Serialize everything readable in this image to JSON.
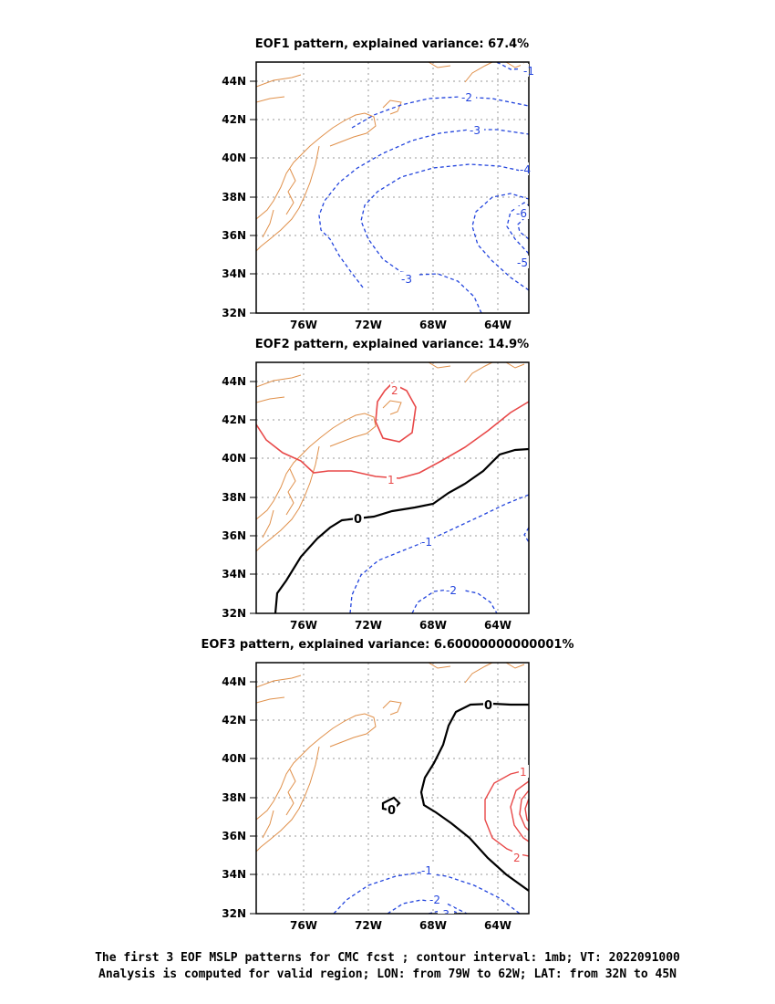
{
  "chart_data": [
    {
      "type": "contour",
      "title": "EOF1 pattern, explained variance: 67.4%",
      "x_ticks": [
        "76W",
        "72W",
        "68W",
        "64W"
      ],
      "y_ticks": [
        "44N",
        "42N",
        "40N",
        "38N",
        "36N",
        "34N",
        "32N"
      ],
      "contour_labels": [
        "-1",
        "-2",
        "-3",
        "-4",
        "-5",
        "-6",
        "-3"
      ],
      "lon_range": [
        -79,
        -62
      ],
      "lat_range": [
        32,
        45
      ],
      "grid": true
    },
    {
      "type": "contour",
      "title": "EOF2 pattern, explained variance: 14.9%",
      "x_ticks": [
        "76W",
        "72W",
        "68W",
        "64W"
      ],
      "y_ticks": [
        "44N",
        "42N",
        "40N",
        "38N",
        "36N",
        "34N",
        "32N"
      ],
      "contour_labels": [
        "2",
        "1",
        "0",
        "-1",
        "-2"
      ],
      "lon_range": [
        -79,
        -62
      ],
      "lat_range": [
        32,
        45
      ],
      "grid": true
    },
    {
      "type": "contour",
      "title": "EOF3 pattern, explained variance: 6.60000000000001%",
      "x_ticks": [
        "76W",
        "72W",
        "68W",
        "64W"
      ],
      "y_ticks": [
        "44N",
        "42N",
        "40N",
        "38N",
        "36N",
        "34N",
        "32N"
      ],
      "contour_labels": [
        "0",
        "0",
        "1",
        "2",
        "-1",
        "-2",
        "-3"
      ],
      "lon_range": [
        -79,
        -62
      ],
      "lat_range": [
        32,
        45
      ],
      "grid": true
    }
  ],
  "colors": {
    "positive": "#e84848",
    "negative": "#2244dd",
    "zero": "#000000",
    "coast": "#e0904a",
    "grid": "#999999"
  },
  "caption": {
    "line1": "The first 3 EOF MSLP patterns for CMC fcst ; contour interval: 1mb; VT: 2022091000",
    "line2": "Analysis is computed for valid region; LON: from 79W to 62W; LAT: from 32N to 45N"
  }
}
